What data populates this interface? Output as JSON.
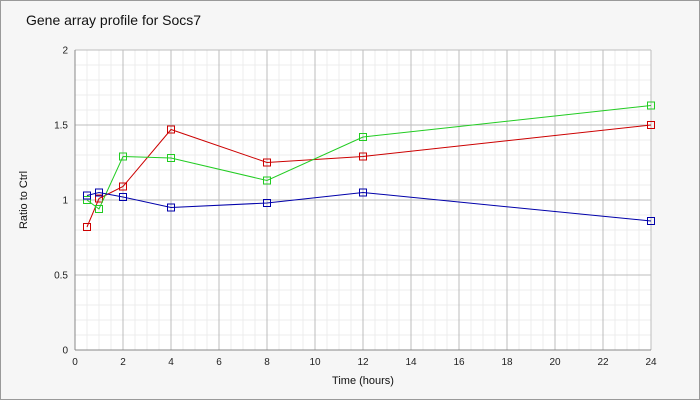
{
  "chart_data": {
    "type": "line",
    "title": "Gene array profile for Socs7",
    "xlabel": "Time (hours)",
    "ylabel": "Ratio to Ctrl",
    "xlim": [
      0,
      24
    ],
    "ylim": [
      0,
      2
    ],
    "xticks": [
      0,
      2,
      4,
      6,
      8,
      10,
      12,
      14,
      16,
      18,
      20,
      22,
      24
    ],
    "xtick_labels": [
      "0",
      "2",
      "4",
      "6",
      "8",
      "10",
      "12",
      "14",
      "16",
      "18",
      "20",
      "22",
      "24"
    ],
    "yticks": [
      0,
      0.5,
      1,
      1.5,
      2
    ],
    "ytick_labels": [
      "0",
      "0.5",
      "1",
      "1.5",
      "2"
    ],
    "grid": true,
    "legend": "none",
    "x": [
      0.5,
      1,
      2,
      4,
      8,
      12,
      24
    ],
    "series": [
      {
        "color": "#cc0000",
        "values": [
          0.82,
          1.01,
          1.09,
          1.47,
          1.25,
          1.29,
          1.5
        ]
      },
      {
        "color": "#22cc22",
        "values": [
          1.0,
          0.94,
          1.29,
          1.28,
          1.13,
          1.42,
          1.63
        ]
      },
      {
        "color": "#0000aa",
        "values": [
          1.03,
          1.05,
          1.02,
          0.95,
          0.98,
          1.05,
          0.86
        ]
      }
    ]
  }
}
